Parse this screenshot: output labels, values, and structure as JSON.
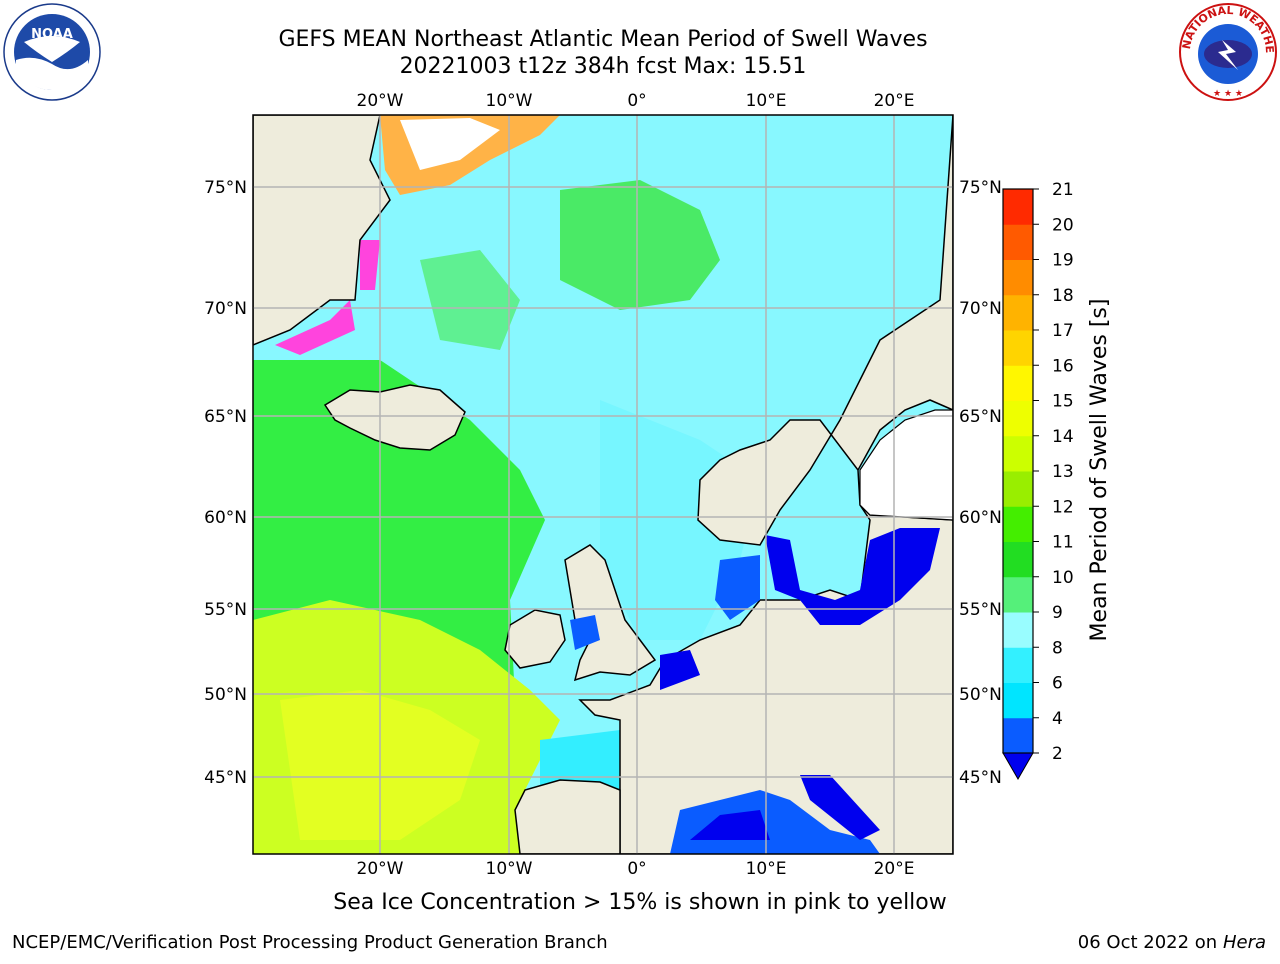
{
  "title": {
    "line1": "GEFS MEAN Northeast Atlantic Mean Period of Swell Waves",
    "line2": "20221003 t12z 384h fcst   Max: 15.51"
  },
  "map": {
    "lon_labels": [
      "20°W",
      "10°W",
      "0°",
      "10°E",
      "20°E"
    ],
    "lat_labels": [
      "75°N",
      "70°N",
      "65°N",
      "60°N",
      "55°N",
      "50°N",
      "45°N"
    ],
    "land_color": "#eeecdc",
    "grid_color": "#b4b4b4"
  },
  "colorbar": {
    "label": "Mean Period of Swell Waves [s]",
    "ticks": [
      "2",
      "4",
      "6",
      "8",
      "9",
      "10",
      "11",
      "12",
      "13",
      "14",
      "15",
      "16",
      "17",
      "18",
      "19",
      "20",
      "21"
    ],
    "colors": [
      "#0a5cff",
      "#00e5ff",
      "#33f0ff",
      "#99fdff",
      "#55f07a",
      "#22dd22",
      "#44ee00",
      "#99ee00",
      "#ccff00",
      "#eeff00",
      "#fff700",
      "#ffd400",
      "#ffb300",
      "#ff8c00",
      "#ff5a00",
      "#ff2a00",
      "#ff0000"
    ],
    "under_color": "#0000ee"
  },
  "note": "Sea Ice Concentration > 15% is shown in pink to yellow",
  "footer": {
    "left": "NCEP/EMC/Verification Post Processing Product Generation Branch",
    "date": "06 Oct 2022 on ",
    "machine": "Hera"
  },
  "logos": {
    "noaa_text": "NOAA",
    "nws_text": "NATIONAL WEATHER SERVICE"
  }
}
